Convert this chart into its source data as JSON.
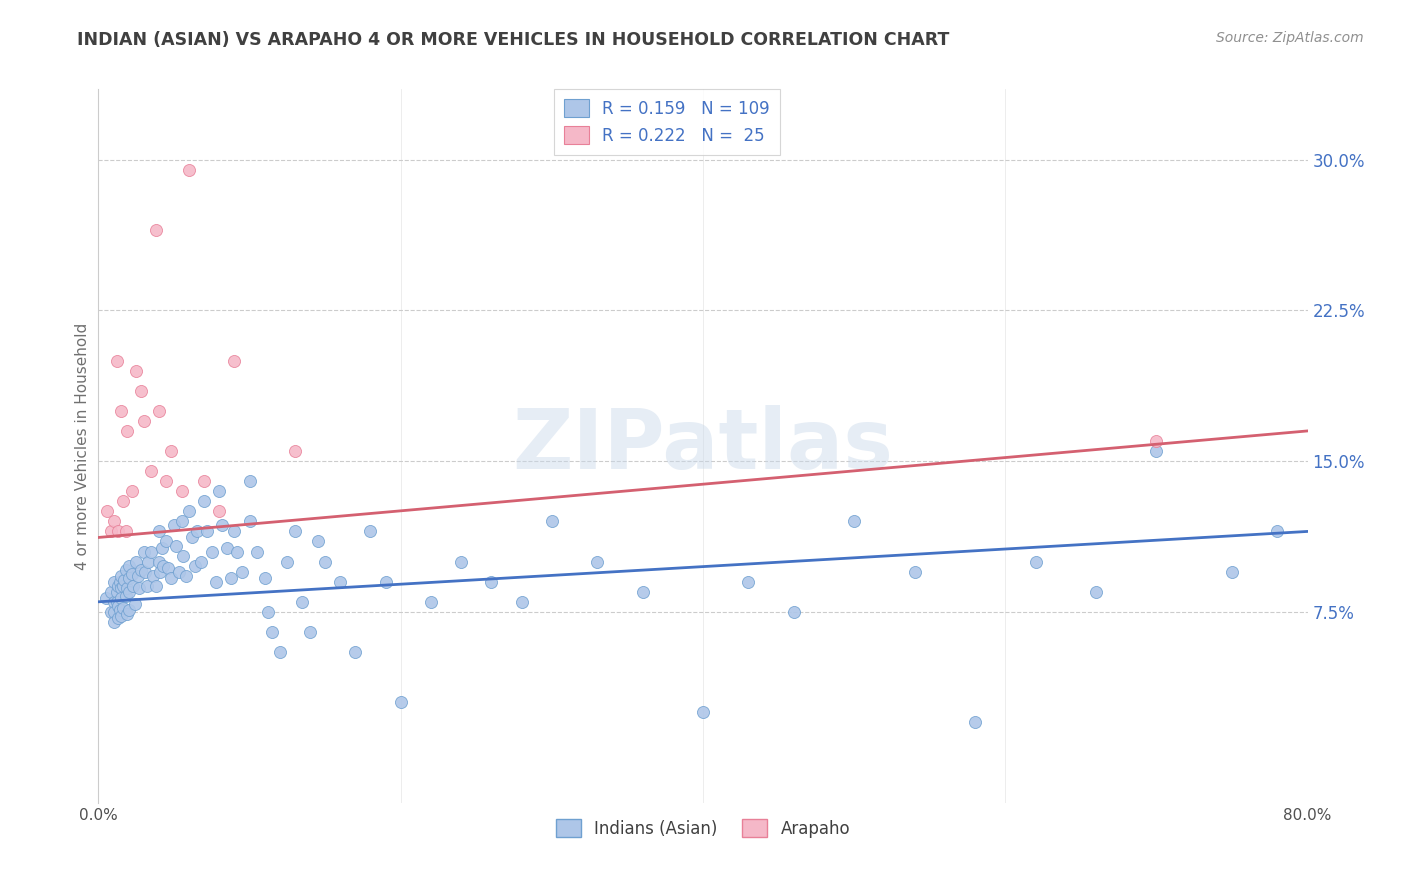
{
  "title": "INDIAN (ASIAN) VS ARAPAHO 4 OR MORE VEHICLES IN HOUSEHOLD CORRELATION CHART",
  "source": "Source: ZipAtlas.com",
  "ylabel": "4 or more Vehicles in Household",
  "watermark": "ZIPatlas",
  "xlim": [
    0.0,
    0.8
  ],
  "ylim": [
    -0.02,
    0.335
  ],
  "yticks": [
    0.075,
    0.15,
    0.225,
    0.3
  ],
  "ytick_labels": [
    "7.5%",
    "15.0%",
    "22.5%",
    "30.0%"
  ],
  "blue_R": 0.159,
  "blue_N": 109,
  "pink_R": 0.222,
  "pink_N": 25,
  "blue_color": "#aec6e8",
  "pink_color": "#f5b8c8",
  "blue_edge_color": "#6fa0d0",
  "pink_edge_color": "#e88098",
  "blue_line_color": "#4472c4",
  "pink_line_color": "#d46070",
  "legend_text_color": "#4472c4",
  "title_color": "#404040",
  "source_color": "#909090",
  "background_color": "#ffffff",
  "grid_color": "#cccccc",
  "blue_scatter_x": [
    0.005,
    0.008,
    0.008,
    0.01,
    0.01,
    0.01,
    0.01,
    0.012,
    0.012,
    0.013,
    0.013,
    0.013,
    0.014,
    0.014,
    0.015,
    0.015,
    0.015,
    0.015,
    0.016,
    0.016,
    0.017,
    0.018,
    0.018,
    0.019,
    0.019,
    0.02,
    0.02,
    0.02,
    0.02,
    0.022,
    0.023,
    0.024,
    0.025,
    0.026,
    0.027,
    0.028,
    0.03,
    0.031,
    0.032,
    0.033,
    0.035,
    0.036,
    0.038,
    0.04,
    0.04,
    0.041,
    0.042,
    0.043,
    0.045,
    0.046,
    0.048,
    0.05,
    0.051,
    0.053,
    0.055,
    0.056,
    0.058,
    0.06,
    0.062,
    0.064,
    0.065,
    0.068,
    0.07,
    0.072,
    0.075,
    0.078,
    0.08,
    0.082,
    0.085,
    0.088,
    0.09,
    0.092,
    0.095,
    0.1,
    0.1,
    0.105,
    0.11,
    0.112,
    0.115,
    0.12,
    0.125,
    0.13,
    0.135,
    0.14,
    0.145,
    0.15,
    0.16,
    0.17,
    0.18,
    0.19,
    0.2,
    0.22,
    0.24,
    0.26,
    0.28,
    0.3,
    0.33,
    0.36,
    0.4,
    0.43,
    0.46,
    0.5,
    0.54,
    0.58,
    0.62,
    0.66,
    0.7,
    0.75,
    0.78
  ],
  "blue_scatter_y": [
    0.082,
    0.075,
    0.085,
    0.09,
    0.08,
    0.075,
    0.07,
    0.085,
    0.08,
    0.088,
    0.078,
    0.072,
    0.09,
    0.076,
    0.093,
    0.087,
    0.082,
    0.073,
    0.088,
    0.077,
    0.091,
    0.096,
    0.083,
    0.087,
    0.074,
    0.098,
    0.092,
    0.085,
    0.076,
    0.094,
    0.088,
    0.079,
    0.1,
    0.093,
    0.087,
    0.096,
    0.105,
    0.095,
    0.088,
    0.1,
    0.105,
    0.093,
    0.088,
    0.115,
    0.1,
    0.095,
    0.107,
    0.098,
    0.11,
    0.097,
    0.092,
    0.118,
    0.108,
    0.095,
    0.12,
    0.103,
    0.093,
    0.125,
    0.112,
    0.098,
    0.115,
    0.1,
    0.13,
    0.115,
    0.105,
    0.09,
    0.135,
    0.118,
    0.107,
    0.092,
    0.115,
    0.105,
    0.095,
    0.14,
    0.12,
    0.105,
    0.092,
    0.075,
    0.065,
    0.055,
    0.1,
    0.115,
    0.08,
    0.065,
    0.11,
    0.1,
    0.09,
    0.055,
    0.115,
    0.09,
    0.03,
    0.08,
    0.1,
    0.09,
    0.08,
    0.12,
    0.1,
    0.085,
    0.025,
    0.09,
    0.075,
    0.12,
    0.095,
    0.02,
    0.1,
    0.085,
    0.155,
    0.095,
    0.115
  ],
  "pink_scatter_x": [
    0.006,
    0.008,
    0.01,
    0.012,
    0.013,
    0.015,
    0.016,
    0.018,
    0.019,
    0.022,
    0.025,
    0.028,
    0.03,
    0.035,
    0.038,
    0.04,
    0.045,
    0.048,
    0.055,
    0.06,
    0.07,
    0.08,
    0.09,
    0.13,
    0.7
  ],
  "pink_scatter_y": [
    0.125,
    0.115,
    0.12,
    0.2,
    0.115,
    0.175,
    0.13,
    0.115,
    0.165,
    0.135,
    0.195,
    0.185,
    0.17,
    0.145,
    0.265,
    0.175,
    0.14,
    0.155,
    0.135,
    0.295,
    0.14,
    0.125,
    0.2,
    0.155,
    0.16
  ],
  "blue_line_x": [
    0.0,
    0.8
  ],
  "blue_line_y": [
    0.08,
    0.115
  ],
  "pink_line_x": [
    0.0,
    0.8
  ],
  "pink_line_y": [
    0.112,
    0.165
  ]
}
